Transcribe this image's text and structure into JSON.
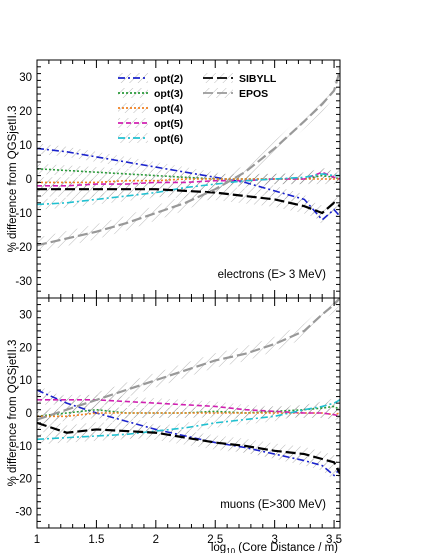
{
  "chart_data": [
    {
      "type": "line",
      "ylabel": "% difference from QGSjetII.3",
      "annotation": "electrons (E> 3 MeV)",
      "xlim": [
        1,
        3.55
      ],
      "ylim": [
        -35,
        35
      ],
      "yticks": [
        -30,
        -20,
        -10,
        0,
        10,
        20,
        30
      ],
      "legend_position": "top-center",
      "series": [
        {
          "name": "opt(2)",
          "color": "#1a22cc",
          "dash": "dash-dot",
          "x": [
            1,
            1.25,
            1.5,
            1.75,
            2,
            2.25,
            2.5,
            2.75,
            3,
            3.25,
            3.4,
            3.5,
            3.55
          ],
          "y": [
            9,
            8,
            6.5,
            5,
            3.5,
            2,
            0.5,
            -1,
            -3.5,
            -6,
            -12,
            -9,
            -11
          ]
        },
        {
          "name": "opt(3)",
          "color": "#2a9a3a",
          "dash": "dotted",
          "x": [
            1,
            1.25,
            1.5,
            1.75,
            2,
            2.25,
            2.5,
            2.75,
            3,
            3.25,
            3.4,
            3.5,
            3.55
          ],
          "y": [
            3,
            2.5,
            2,
            1.5,
            1,
            0.5,
            0,
            0,
            0,
            0,
            1,
            0.5,
            0
          ]
        },
        {
          "name": "opt(4)",
          "color": "#f08020",
          "dash": "dotted",
          "x": [
            1,
            1.25,
            1.5,
            1.75,
            2,
            2.25,
            2.5,
            2.75,
            3,
            3.25,
            3.4,
            3.5,
            3.55
          ],
          "y": [
            -1,
            -1,
            -1,
            -0.5,
            -0.5,
            0,
            0,
            0,
            0,
            0,
            0,
            0,
            0
          ]
        },
        {
          "name": "opt(5)",
          "color": "#d020b0",
          "dash": "dashed",
          "x": [
            1,
            1.25,
            1.5,
            1.75,
            2,
            2.25,
            2.5,
            2.75,
            3,
            3.25,
            3.4,
            3.5,
            3.55
          ],
          "y": [
            -2,
            -2,
            -1.5,
            -1.5,
            -1,
            -1,
            -0.5,
            -0.5,
            0,
            0,
            2,
            0.5,
            0
          ]
        },
        {
          "name": "opt(6)",
          "color": "#20c0d0",
          "dash": "dash-dot",
          "x": [
            1,
            1.25,
            1.5,
            1.75,
            2,
            2.25,
            2.5,
            2.75,
            3,
            3.25,
            3.4,
            3.5,
            3.55
          ],
          "y": [
            -7.5,
            -7,
            -6,
            -5,
            -4,
            -2.5,
            -1.5,
            -0.5,
            0,
            0.5,
            1.5,
            1,
            1
          ]
        },
        {
          "name": "SIBYLL",
          "color": "#000000",
          "dash": "long-dash",
          "x": [
            1,
            1.25,
            1.5,
            1.75,
            2,
            2.25,
            2.5,
            2.75,
            3,
            3.25,
            3.4,
            3.5,
            3.55
          ],
          "y": [
            -3,
            -3,
            -3,
            -3,
            -3,
            -3.5,
            -4,
            -5,
            -6,
            -8,
            -10,
            -7,
            -8
          ]
        },
        {
          "name": "EPOS",
          "color": "#999999",
          "dash": "long-dash",
          "x": [
            1,
            1.25,
            1.5,
            1.75,
            2,
            2.25,
            2.5,
            2.75,
            3,
            3.25,
            3.4,
            3.5,
            3.55
          ],
          "y": [
            -19.5,
            -17.5,
            -15.5,
            -13,
            -10,
            -7,
            -3,
            2,
            9,
            17,
            22,
            26,
            32
          ]
        }
      ]
    },
    {
      "type": "line",
      "ylabel": "% difference from QGSjetII.3",
      "xlabel": "log10 (Core Distance / m)",
      "annotation": "muons (E>300 MeV)",
      "xlim": [
        1,
        3.55
      ],
      "ylim": [
        -35,
        35
      ],
      "yticks": [
        -30,
        -20,
        -10,
        0,
        10,
        20,
        30
      ],
      "xticks": [
        1,
        1.5,
        2,
        2.5,
        3,
        3.5
      ],
      "series": [
        {
          "name": "opt(2)",
          "color": "#1a22cc",
          "dash": "dash-dot",
          "x": [
            1,
            1.25,
            1.5,
            1.75,
            2,
            2.25,
            2.5,
            2.75,
            3,
            3.25,
            3.4,
            3.5,
            3.55
          ],
          "y": [
            7,
            3,
            0,
            -2.5,
            -5,
            -7,
            -9,
            -10.5,
            -12.5,
            -14.5,
            -16,
            -19,
            -17
          ]
        },
        {
          "name": "opt(3)",
          "color": "#2a9a3a",
          "dash": "dotted",
          "x": [
            1,
            1.25,
            1.5,
            1.75,
            2,
            2.25,
            2.5,
            2.75,
            3,
            3.25,
            3.4,
            3.5,
            3.55
          ],
          "y": [
            -1,
            0,
            1,
            0,
            0,
            0,
            0.5,
            0,
            0.5,
            1,
            1.5,
            2,
            1
          ]
        },
        {
          "name": "opt(4)",
          "color": "#f08020",
          "dash": "dotted",
          "x": [
            1,
            1.25,
            1.5,
            1.75,
            2,
            2.25,
            2.5,
            2.75,
            3,
            3.25,
            3.4,
            3.5,
            3.55
          ],
          "y": [
            -1,
            -1,
            0,
            0,
            0,
            0,
            0,
            0,
            0,
            0,
            0,
            -0.5,
            0
          ]
        },
        {
          "name": "opt(5)",
          "color": "#d020b0",
          "dash": "dashed",
          "x": [
            1,
            1.25,
            1.5,
            1.75,
            2,
            2.25,
            2.5,
            2.75,
            3,
            3.25,
            3.4,
            3.5,
            3.55
          ],
          "y": [
            4,
            4,
            4,
            3.5,
            3,
            2.5,
            2,
            1,
            0.5,
            0,
            0,
            -0.5,
            -1
          ]
        },
        {
          "name": "opt(6)",
          "color": "#20c0d0",
          "dash": "dash-dot",
          "x": [
            1,
            1.25,
            1.5,
            1.75,
            2,
            2.25,
            2.5,
            2.75,
            3,
            3.25,
            3.4,
            3.5,
            3.55
          ],
          "y": [
            -8,
            -7.5,
            -7,
            -6.5,
            -5.5,
            -4.5,
            -3,
            -2,
            -1,
            1,
            2,
            3,
            4
          ]
        },
        {
          "name": "SIBYLL",
          "color": "#000000",
          "dash": "long-dash",
          "x": [
            1,
            1.25,
            1.5,
            1.75,
            2,
            2.25,
            2.5,
            2.75,
            3,
            3.25,
            3.4,
            3.5,
            3.55
          ],
          "y": [
            -3,
            -6,
            -5,
            -5.5,
            -6,
            -7.5,
            -9,
            -10,
            -11.5,
            -12.5,
            -14,
            -15,
            -18.5
          ]
        },
        {
          "name": "EPOS",
          "color": "#999999",
          "dash": "long-dash",
          "x": [
            1,
            1.25,
            1.5,
            1.75,
            2,
            2.25,
            2.5,
            2.75,
            3,
            3.25,
            3.4,
            3.5,
            3.55
          ],
          "y": [
            -2,
            1,
            4,
            7,
            10,
            13,
            16,
            18,
            21,
            25,
            30,
            33,
            35
          ]
        }
      ]
    }
  ]
}
